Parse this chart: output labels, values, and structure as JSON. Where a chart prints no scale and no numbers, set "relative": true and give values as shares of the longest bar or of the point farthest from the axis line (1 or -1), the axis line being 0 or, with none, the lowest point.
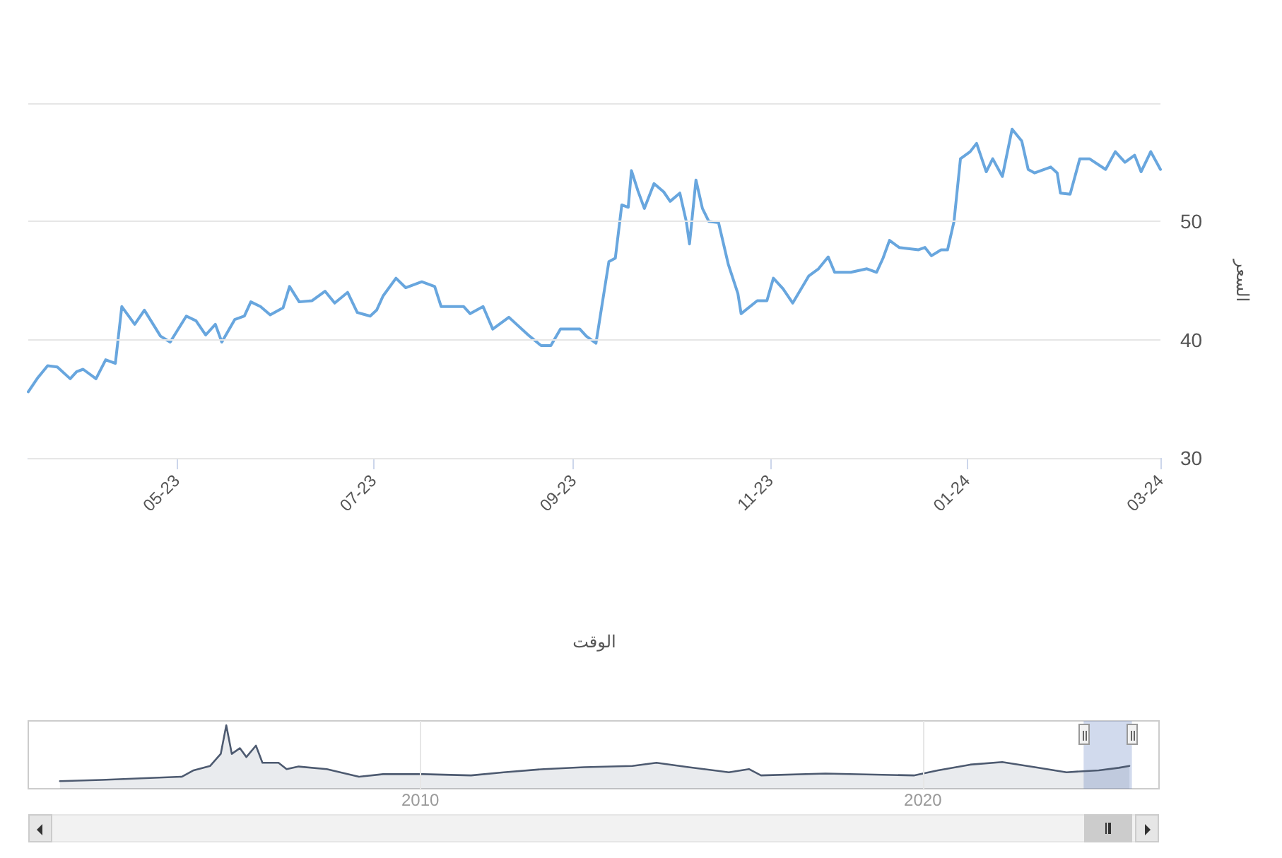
{
  "chart_data": [
    {
      "type": "line",
      "xlabel": "الوقت",
      "ylabel": "السعر",
      "color": "#68a6de",
      "x": [
        "2023-03-16",
        "2023-03-19",
        "2023-03-22",
        "2023-03-25",
        "2023-03-29",
        "2023-03-31",
        "2023-04-02",
        "2023-04-06",
        "2023-04-09",
        "2023-04-12",
        "2023-04-14",
        "2023-04-18",
        "2023-04-21",
        "2023-04-26",
        "2023-04-29",
        "2023-05-04",
        "2023-05-07",
        "2023-05-10",
        "2023-05-13",
        "2023-05-15",
        "2023-05-19",
        "2023-05-22",
        "2023-05-24",
        "2023-05-27",
        "2023-05-30",
        "2023-06-03",
        "2023-06-05",
        "2023-06-08",
        "2023-06-12",
        "2023-06-16",
        "2023-06-19",
        "2023-06-23",
        "2023-06-26",
        "2023-06-30",
        "2023-07-02",
        "2023-07-04",
        "2023-07-08",
        "2023-07-11",
        "2023-07-16",
        "2023-07-20",
        "2023-07-22",
        "2023-07-26",
        "2023-07-29",
        "2023-07-31",
        "2023-08-04",
        "2023-08-07",
        "2023-08-12",
        "2023-08-18",
        "2023-08-22",
        "2023-08-25",
        "2023-08-28",
        "2023-09-03",
        "2023-09-05",
        "2023-09-08",
        "2023-09-12",
        "2023-09-14",
        "2023-09-16",
        "2023-09-18",
        "2023-09-19",
        "2023-09-21",
        "2023-09-23",
        "2023-09-26",
        "2023-09-29",
        "2023-10-01",
        "2023-10-04",
        "2023-10-06",
        "2023-10-07",
        "2023-10-09",
        "2023-10-11",
        "2023-10-13",
        "2023-10-16",
        "2023-10-19",
        "2023-10-22",
        "2023-10-23",
        "2023-10-28",
        "2023-10-31",
        "2023-11-02",
        "2023-11-05",
        "2023-11-08",
        "2023-11-13",
        "2023-11-16",
        "2023-11-19",
        "2023-11-21",
        "2023-11-26",
        "2023-12-01",
        "2023-12-04",
        "2023-12-06",
        "2023-12-08",
        "2023-12-11",
        "2023-12-17",
        "2023-12-19",
        "2023-12-21",
        "2023-12-24",
        "2023-12-26",
        "2023-12-28",
        "2023-12-30",
        "2024-01-02",
        "2024-01-04",
        "2024-01-07",
        "2024-01-09",
        "2024-01-12",
        "2024-01-15",
        "2024-01-18",
        "2024-01-20",
        "2024-01-22",
        "2024-01-27",
        "2024-01-29",
        "2024-01-30",
        "2024-02-02",
        "2024-02-05",
        "2024-02-08",
        "2024-02-13",
        "2024-02-16",
        "2024-02-19",
        "2024-02-22",
        "2024-02-24",
        "2024-02-27",
        "2024-03-01"
      ],
      "values": [
        35.6,
        36.8,
        37.8,
        37.7,
        36.7,
        37.3,
        37.5,
        36.7,
        38.3,
        38.0,
        42.8,
        41.3,
        42.5,
        40.3,
        39.8,
        42.0,
        41.6,
        40.4,
        41.3,
        39.8,
        41.7,
        42.0,
        43.2,
        42.8,
        42.1,
        42.7,
        44.5,
        43.2,
        43.3,
        44.1,
        43.1,
        44.0,
        42.3,
        42.0,
        42.5,
        43.7,
        45.2,
        44.4,
        44.9,
        44.5,
        42.8,
        42.8,
        42.8,
        42.2,
        42.8,
        40.9,
        41.9,
        40.4,
        39.5,
        39.5,
        40.9,
        40.9,
        40.3,
        39.7,
        46.6,
        46.9,
        51.4,
        51.2,
        54.3,
        52.6,
        51.1,
        53.2,
        52.5,
        51.7,
        52.4,
        50.0,
        48.1,
        53.5,
        51.1,
        50.0,
        49.9,
        46.4,
        43.9,
        42.2,
        43.3,
        43.3,
        45.2,
        44.3,
        43.1,
        45.4,
        46.0,
        47.0,
        45.7,
        45.7,
        46.0,
        45.7,
        46.9,
        48.4,
        47.8,
        47.6,
        47.8,
        47.1,
        47.6,
        47.6,
        50.0,
        55.3,
        55.9,
        56.6,
        54.2,
        55.3,
        53.8,
        57.8,
        56.8,
        54.4,
        54.1,
        54.6,
        54.1,
        52.4,
        52.3,
        55.3,
        55.3,
        54.4,
        55.9,
        55.0,
        55.6,
        54.2,
        55.9,
        54.4
      ],
      "xlim": [
        "2023-03-16",
        "2024-03-01"
      ],
      "xticks": [
        {
          "value": "2023-05-01",
          "label": "05-23"
        },
        {
          "value": "2023-07-01",
          "label": "07-23"
        },
        {
          "value": "2023-09-01",
          "label": "09-23"
        },
        {
          "value": "2023-11-01",
          "label": "11-23"
        },
        {
          "value": "2024-01-01",
          "label": "01-24"
        },
        {
          "value": "2024-03-01",
          "label": "03-24"
        }
      ],
      "ylim": [
        30,
        60
      ],
      "yticks": [
        30,
        40,
        50,
        {
          "value": 60,
          "label": null
        }
      ],
      "grid": "y",
      "marker": "none",
      "line_style": "solid"
    },
    {
      "type": "area",
      "relative": true,
      "color": "#4d5a70",
      "tick_labels": "x",
      "grid": "x",
      "marker": "none",
      "x": [
        2002.83,
        2003.66,
        2005.26,
        2005.49,
        2005.82,
        2006.03,
        2006.14,
        2006.25,
        2006.41,
        2006.54,
        2006.73,
        2006.86,
        2007.18,
        2007.34,
        2007.58,
        2008.14,
        2008.78,
        2009.26,
        2010.06,
        2011.01,
        2011.66,
        2012.46,
        2013.26,
        2014.22,
        2014.7,
        2015.34,
        2016.14,
        2016.54,
        2016.78,
        2018.06,
        2019.82,
        2020.3,
        2020.94,
        2021.58,
        2022.23,
        2022.86,
        2023.5,
        2023.9,
        2024.11
      ],
      "values": [
        0.12,
        0.14,
        0.19,
        0.29,
        0.36,
        0.55,
        1,
        0.55,
        0.64,
        0.5,
        0.68,
        0.41,
        0.41,
        0.31,
        0.35,
        0.31,
        0.19,
        0.23,
        0.23,
        0.21,
        0.26,
        0.31,
        0.34,
        0.36,
        0.41,
        0.34,
        0.26,
        0.31,
        0.21,
        0.24,
        0.21,
        0.29,
        0.38,
        0.42,
        0.34,
        0.26,
        0.29,
        0.33,
        0.36
      ],
      "xlim": [
        2002.2,
        2024.7
      ],
      "xticks": [
        2010,
        2020
      ],
      "bands": [
        {
          "axis": "x",
          "from": 2023.2,
          "to": 2024.16,
          "color": "#6685c2"
        }
      ]
    }
  ]
}
